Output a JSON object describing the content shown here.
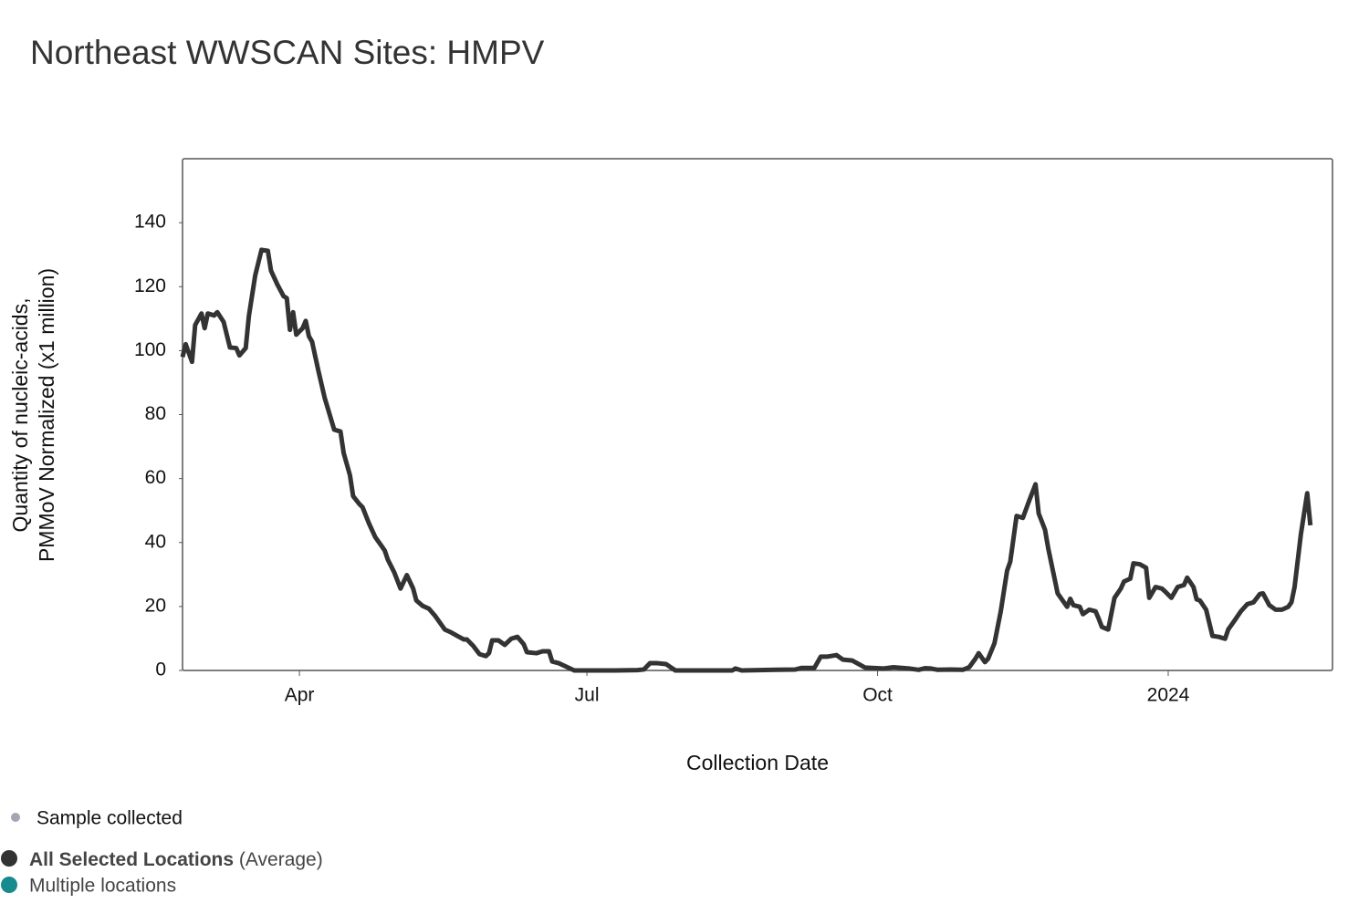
{
  "chart_data": {
    "type": "line",
    "title": "Northeast WWSCAN Sites: HMPV",
    "y_label": [
      "Quantity of nucleic-acids,",
      "PMMoV Normalized (x1 million)"
    ],
    "x_label": "Collection Date",
    "xlim": [
      "2023-02-23",
      "2024-02-22"
    ],
    "xticks": [
      {
        "value": "2023-04-01",
        "label": "Apr"
      },
      {
        "value": "2023-07-01",
        "label": "Jul"
      },
      {
        "value": "2023-10-01",
        "label": "Oct"
      },
      {
        "value": "2024-01-01",
        "label": "2024"
      }
    ],
    "ylim": [
      0,
      160
    ],
    "yticks": [
      0,
      20,
      40,
      60,
      80,
      100,
      120,
      140
    ],
    "grid": false,
    "x": [
      "2023-02-23",
      "2023-02-24",
      "2023-02-26",
      "2023-02-27",
      "2023-03-01",
      "2023-03-02",
      "2023-03-03",
      "2023-03-05",
      "2023-03-06",
      "2023-03-08",
      "2023-03-10",
      "2023-03-12",
      "2023-03-13",
      "2023-03-15",
      "2023-03-16",
      "2023-03-18",
      "2023-03-20",
      "2023-03-22",
      "2023-03-23",
      "2023-03-25",
      "2023-03-27",
      "2023-03-28",
      "2023-03-29",
      "2023-03-30",
      "2023-03-31",
      "2023-04-02",
      "2023-04-03",
      "2023-04-04",
      "2023-04-05",
      "2023-04-07",
      "2023-04-09",
      "2023-04-12",
      "2023-04-14",
      "2023-04-15",
      "2023-04-17",
      "2023-04-18",
      "2023-04-20",
      "2023-04-21",
      "2023-04-23",
      "2023-04-25",
      "2023-04-27",
      "2023-04-28",
      "2023-04-29",
      "2023-05-01",
      "2023-05-03",
      "2023-05-05",
      "2023-05-07",
      "2023-05-08",
      "2023-05-10",
      "2023-05-12",
      "2023-05-14",
      "2023-05-17",
      "2023-05-19",
      "2023-05-21",
      "2023-05-23",
      "2023-05-24",
      "2023-05-26",
      "2023-05-28",
      "2023-05-30",
      "2023-05-31",
      "2023-06-01",
      "2023-06-03",
      "2023-06-05",
      "2023-06-07",
      "2023-06-09",
      "2023-06-11",
      "2023-06-12",
      "2023-06-15",
      "2023-06-17",
      "2023-06-19",
      "2023-06-20",
      "2023-06-22",
      "2023-06-24",
      "2023-06-27",
      "2023-07-01",
      "2023-07-10",
      "2023-07-17",
      "2023-07-19",
      "2023-07-21",
      "2023-07-23",
      "2023-07-26",
      "2023-07-29",
      "2023-08-05",
      "2023-08-16",
      "2023-08-17",
      "2023-08-19",
      "2023-08-30",
      "2023-09-05",
      "2023-09-07",
      "2023-09-11",
      "2023-09-13",
      "2023-09-15",
      "2023-09-18",
      "2023-09-20",
      "2023-09-23",
      "2023-09-25",
      "2023-09-27",
      "2023-10-03",
      "2023-10-06",
      "2023-10-11",
      "2023-10-14",
      "2023-10-16",
      "2023-10-18",
      "2023-10-20",
      "2023-10-24",
      "2023-10-28",
      "2023-10-30",
      "2023-11-01",
      "2023-11-02",
      "2023-11-04",
      "2023-11-05",
      "2023-11-07",
      "2023-11-09",
      "2023-11-11",
      "2023-11-12",
      "2023-11-14",
      "2023-11-16",
      "2023-11-18",
      "2023-11-20",
      "2023-11-21",
      "2023-11-23",
      "2023-11-24",
      "2023-11-27",
      "2023-11-28",
      "2023-11-30",
      "2023-12-01",
      "2023-12-02",
      "2023-12-04",
      "2023-12-05",
      "2023-12-07",
      "2023-12-09",
      "2023-12-10",
      "2023-12-11",
      "2023-12-13",
      "2023-12-15",
      "2023-12-17",
      "2023-12-18",
      "2023-12-20",
      "2023-12-21",
      "2023-12-23",
      "2023-12-25",
      "2023-12-26",
      "2023-12-28",
      "2023-12-30",
      "2023-12-31",
      "2024-01-02",
      "2024-01-04",
      "2024-01-06",
      "2024-01-07",
      "2024-01-09",
      "2024-01-10",
      "2024-01-11",
      "2024-01-13",
      "2024-01-15",
      "2024-01-17",
      "2024-01-19",
      "2024-01-20",
      "2024-01-22",
      "2024-01-24",
      "2024-01-26",
      "2024-01-28",
      "2024-01-30",
      "2024-01-31",
      "2024-02-02",
      "2024-02-04",
      "2024-02-06",
      "2024-02-08",
      "2024-02-09",
      "2024-02-10",
      "2024-02-12",
      "2024-02-14",
      "2024-02-15"
    ],
    "series": [
      {
        "name": "All Selected Locations",
        "name_suffix": "(Average)",
        "color": "#333333",
        "values": [
          98,
          102,
          96.5,
          108,
          111.6,
          107,
          111.6,
          111,
          112,
          109,
          101,
          100.8,
          98.5,
          100.8,
          110.8,
          123.5,
          131.5,
          131.2,
          125,
          120.7,
          117,
          116.4,
          106.5,
          112,
          105,
          107,
          109.3,
          104.5,
          102.8,
          93.7,
          85.2,
          75.3,
          74.7,
          68,
          61,
          54.5,
          52,
          51,
          46,
          41.7,
          38.9,
          37.5,
          34.6,
          30.7,
          25.6,
          29.8,
          25.6,
          21.9,
          20.2,
          19.3,
          17,
          12.8,
          11.9,
          10.8,
          9.7,
          9.7,
          7.7,
          5.1,
          4.5,
          5.4,
          9.4,
          9.4,
          8,
          9.9,
          10.5,
          8.2,
          5.7,
          5.4,
          6,
          6,
          2.8,
          2.3,
          1.4,
          0,
          0,
          0,
          0.1,
          0.3,
          2.3,
          2.3,
          2,
          0,
          0,
          0,
          0.6,
          0,
          0.2,
          0.3,
          0.8,
          0.8,
          4.3,
          4.3,
          4.8,
          3.4,
          3.1,
          2,
          0.9,
          0.6,
          1,
          0.6,
          0.2,
          0.7,
          0.6,
          0.2,
          0.3,
          0.2,
          1,
          3.7,
          5.4,
          2.6,
          3.7,
          8.5,
          18.5,
          31.2,
          34,
          48.3,
          47.7,
          53.1,
          58.2,
          49.1,
          44,
          38.3,
          24.1,
          22.7,
          19.9,
          22.4,
          20.4,
          19.9,
          17.6,
          19,
          18.5,
          16.2,
          13.6,
          12.8,
          22.7,
          25.6,
          27.8,
          28.7,
          33.5,
          33.2,
          32.1,
          22.7,
          26.1,
          25.6,
          24.7,
          22.7,
          26.1,
          26.7,
          29,
          26.1,
          22.2,
          21.9,
          19,
          10.8,
          10.5,
          9.9,
          12.8,
          15.6,
          18.5,
          20.7,
          21.3,
          23.9,
          24.1,
          20.4,
          19,
          19,
          19.9,
          21.3,
          26.1,
          42.6,
          55.4,
          45.4
        ]
      }
    ],
    "legend_items": [
      {
        "name": "Sample collected",
        "color": "#a3a5b3"
      },
      {
        "name": "Multiple locations",
        "color": "#168a8c"
      }
    ]
  }
}
